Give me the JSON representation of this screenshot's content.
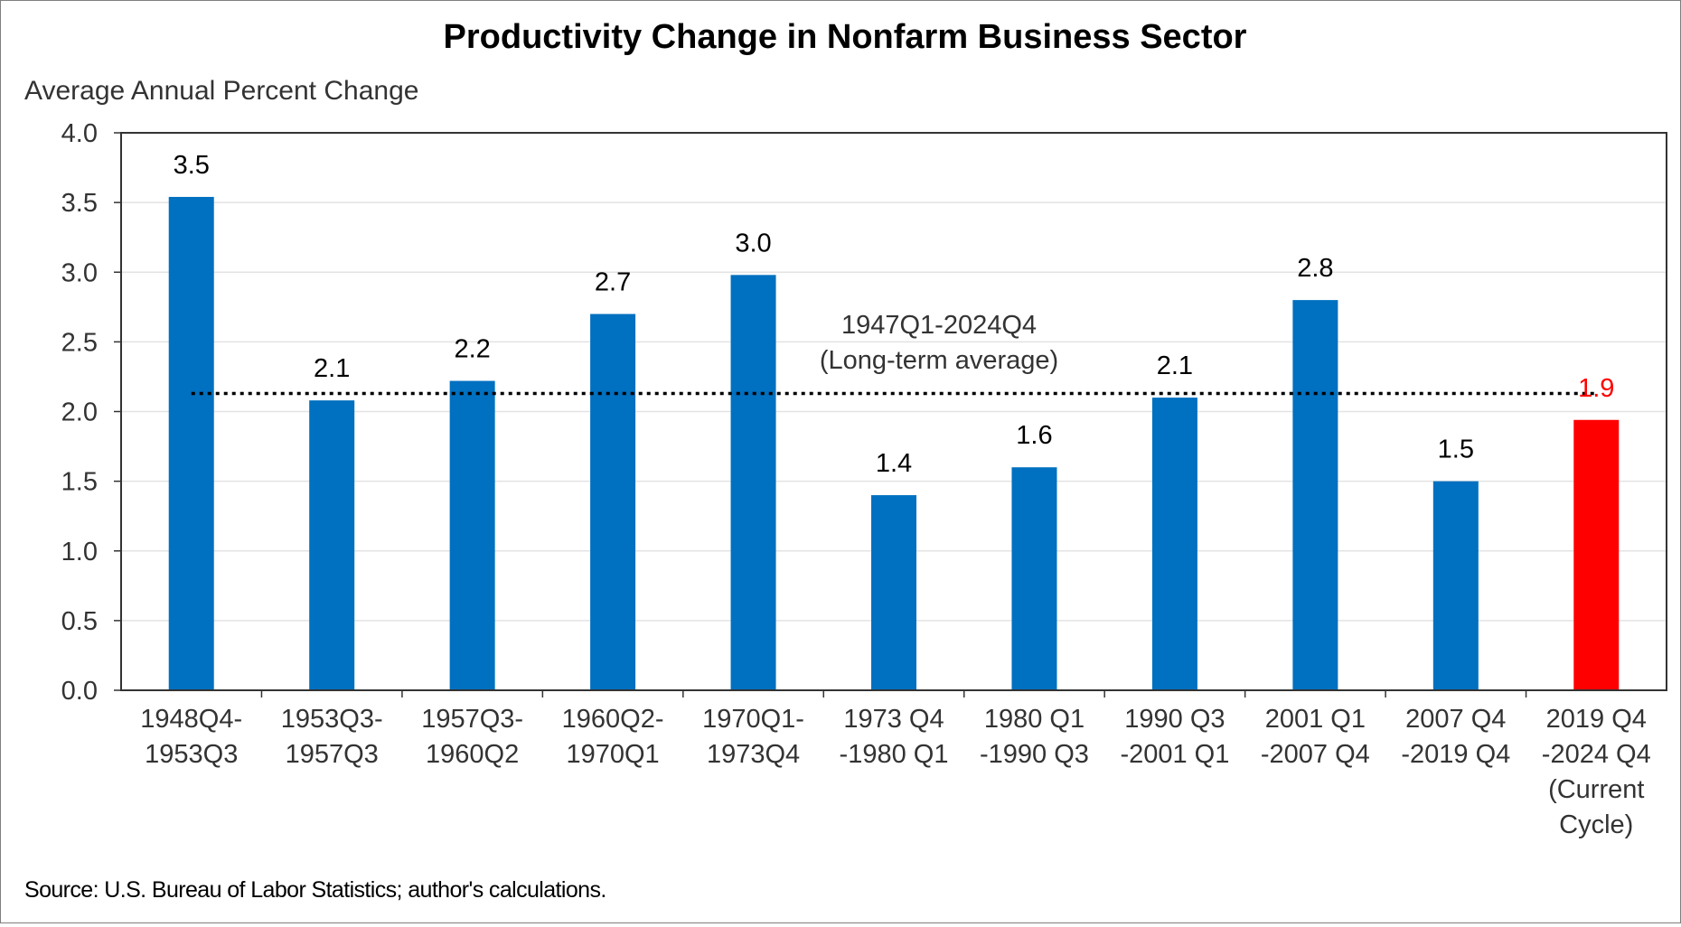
{
  "chart_data": {
    "type": "bar",
    "title": "Productivity Change in Nonfarm Business Sector",
    "ylabel": "Average Annual Percent Change",
    "xlabel": "",
    "ylim": [
      0,
      4
    ],
    "yticks": [
      "0.0",
      "0.5",
      "1.0",
      "1.5",
      "2.0",
      "2.5",
      "3.0",
      "3.5",
      "4.0"
    ],
    "grid": true,
    "categories": [
      [
        "1948Q4-",
        "1953Q3"
      ],
      [
        "1953Q3-",
        "1957Q3"
      ],
      [
        "1957Q3-",
        "1960Q2"
      ],
      [
        "1960Q2-",
        "1970Q1"
      ],
      [
        "1970Q1-",
        "1973Q4"
      ],
      [
        "1973 Q4",
        "-1980 Q1"
      ],
      [
        "1980 Q1",
        "-1990 Q3"
      ],
      [
        "1990 Q3",
        "-2001 Q1"
      ],
      [
        "2001 Q1",
        "-2007 Q4"
      ],
      [
        "2007 Q4",
        "-2019 Q4"
      ],
      [
        "2019 Q4",
        "-2024 Q4",
        "(Current",
        "Cycle)"
      ]
    ],
    "values": [
      3.54,
      2.08,
      2.22,
      2.7,
      2.98,
      1.4,
      1.6,
      2.1,
      2.8,
      1.5,
      1.94
    ],
    "data_labels": [
      "3.5",
      "2.1",
      "2.2",
      "2.7",
      "3.0",
      "1.4",
      "1.6",
      "2.1",
      "2.8",
      "1.5",
      "1.9"
    ],
    "bar_colors": [
      "#0070c0",
      "#0070c0",
      "#0070c0",
      "#0070c0",
      "#0070c0",
      "#0070c0",
      "#0070c0",
      "#0070c0",
      "#0070c0",
      "#0070c0",
      "#ff0000"
    ],
    "label_colors": [
      "#000000",
      "#000000",
      "#000000",
      "#000000",
      "#000000",
      "#000000",
      "#000000",
      "#000000",
      "#000000",
      "#000000",
      "#ff0000"
    ],
    "reference_line": {
      "value": 2.13,
      "style": "dotted",
      "label_lines": [
        "1947Q1-2024Q4",
        "(Long-term average)"
      ]
    },
    "source_note": "Source:  U.S. Bureau of Labor Statistics; author's calculations."
  }
}
